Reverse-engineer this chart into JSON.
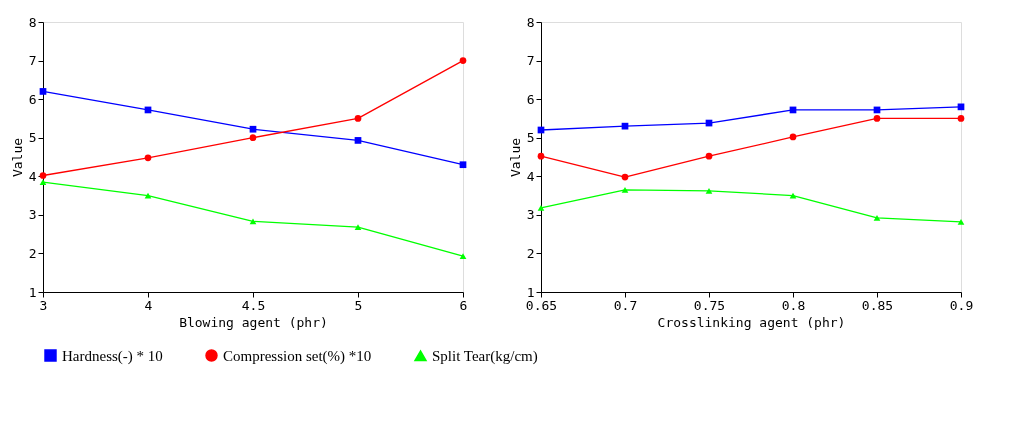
{
  "chart_data": [
    {
      "type": "line",
      "xlabel": "Blowing agent (phr)",
      "ylabel": "Value",
      "categories": [
        "3",
        "4",
        "4.5",
        "5",
        "6"
      ],
      "ylim": [
        1,
        8
      ],
      "yticks": [
        1,
        2,
        3,
        4,
        5,
        6,
        7,
        8
      ],
      "grid": false,
      "legend": "bottom",
      "series": [
        {
          "name": "Hardness(-) * 10",
          "color": "#0000ff",
          "marker": "square",
          "values": [
            6.2,
            5.72,
            5.22,
            4.93,
            4.3
          ]
        },
        {
          "name": "Compression set(%) *10",
          "color": "#ff0000",
          "marker": "circle",
          "values": [
            4.02,
            4.48,
            5.0,
            5.5,
            7.0
          ]
        },
        {
          "name": "Split Tear(kg/cm)",
          "color": "#00ff00",
          "marker": "triangle",
          "values": [
            3.85,
            3.5,
            2.83,
            2.68,
            1.93
          ]
        }
      ]
    },
    {
      "type": "line",
      "xlabel": "Crosslinking agent (phr)",
      "ylabel": "Value",
      "categories": [
        "0.65",
        "0.7",
        "0.75",
        "0.8",
        "0.85",
        "0.9"
      ],
      "ylim": [
        1,
        8
      ],
      "yticks": [
        1,
        2,
        3,
        4,
        5,
        6,
        7,
        8
      ],
      "grid": false,
      "legend": "bottom",
      "series": [
        {
          "name": "Hardness(-) * 10",
          "color": "#0000ff",
          "marker": "square",
          "values": [
            5.2,
            5.3,
            5.38,
            5.72,
            5.72,
            5.8
          ]
        },
        {
          "name": "Compression set(%) *10",
          "color": "#ff0000",
          "marker": "circle",
          "values": [
            4.52,
            3.98,
            4.52,
            5.02,
            5.5,
            5.5
          ]
        },
        {
          "name": "Split Tear(kg/cm)",
          "color": "#00ff00",
          "marker": "triangle",
          "values": [
            3.18,
            3.65,
            3.62,
            3.5,
            2.92,
            2.82
          ]
        }
      ]
    }
  ]
}
